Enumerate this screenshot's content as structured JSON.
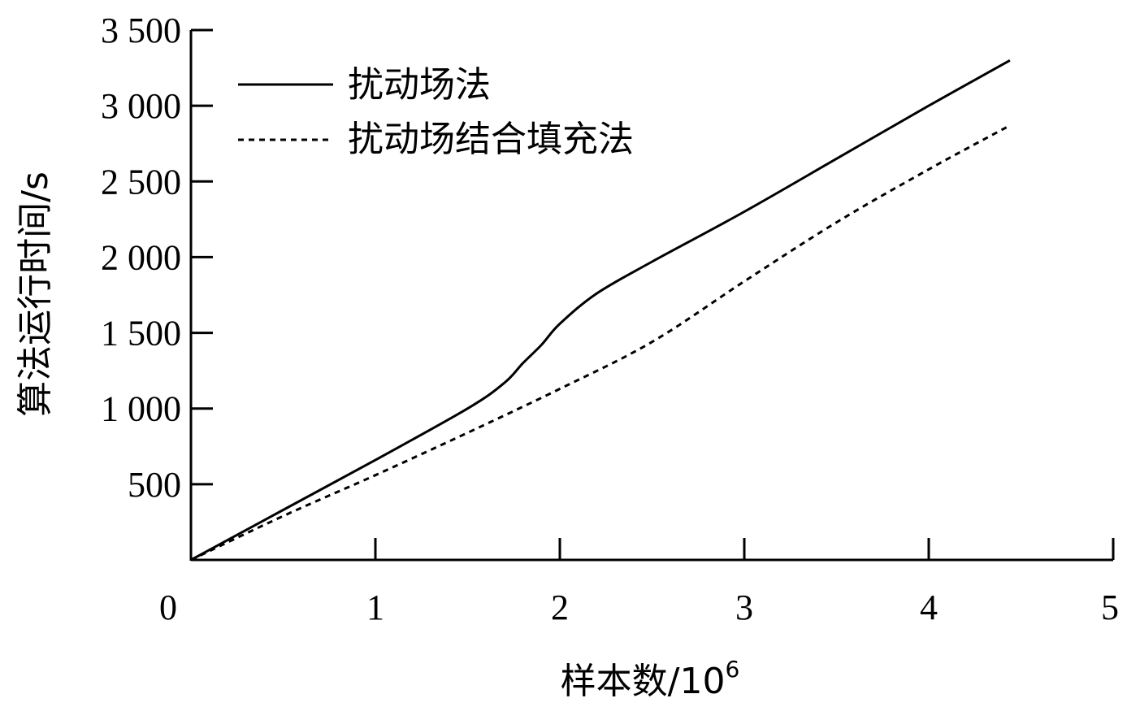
{
  "chart_data": {
    "type": "line",
    "title": "",
    "xlabel": "样本数/10",
    "xlabel_sup": "6",
    "ylabel": "算法运行时间/s",
    "xlim": [
      0,
      5
    ],
    "ylim": [
      0,
      3500
    ],
    "x_ticks": [
      0,
      1,
      2,
      3,
      4,
      5
    ],
    "x_tick_labels": [
      "0",
      "1",
      "2",
      "3",
      "4",
      "5"
    ],
    "y_ticks": [
      500,
      1000,
      1500,
      2000,
      2500,
      3000,
      3500
    ],
    "y_tick_labels": [
      "500",
      "1 000",
      "1 500",
      "2 000",
      "2 500",
      "3 000",
      "3 500"
    ],
    "grid": false,
    "legend_position": "top-left",
    "series": [
      {
        "name": "扰动场法",
        "style": "solid",
        "x": [
          0,
          0.5,
          1.0,
          1.5,
          1.7,
          1.8,
          1.9,
          2.0,
          2.2,
          2.5,
          3.0,
          3.5,
          4.0,
          4.44
        ],
        "y": [
          0,
          330,
          660,
          1000,
          1170,
          1300,
          1420,
          1560,
          1760,
          1970,
          2300,
          2650,
          3000,
          3300
        ]
      },
      {
        "name": "扰动场结合填充法",
        "style": "dashed",
        "x": [
          0,
          0.5,
          1.0,
          1.5,
          2.0,
          2.5,
          3.0,
          3.5,
          4.0,
          4.44
        ],
        "y": [
          0,
          290,
          560,
          840,
          1130,
          1440,
          1840,
          2230,
          2580,
          2870
        ]
      }
    ]
  }
}
